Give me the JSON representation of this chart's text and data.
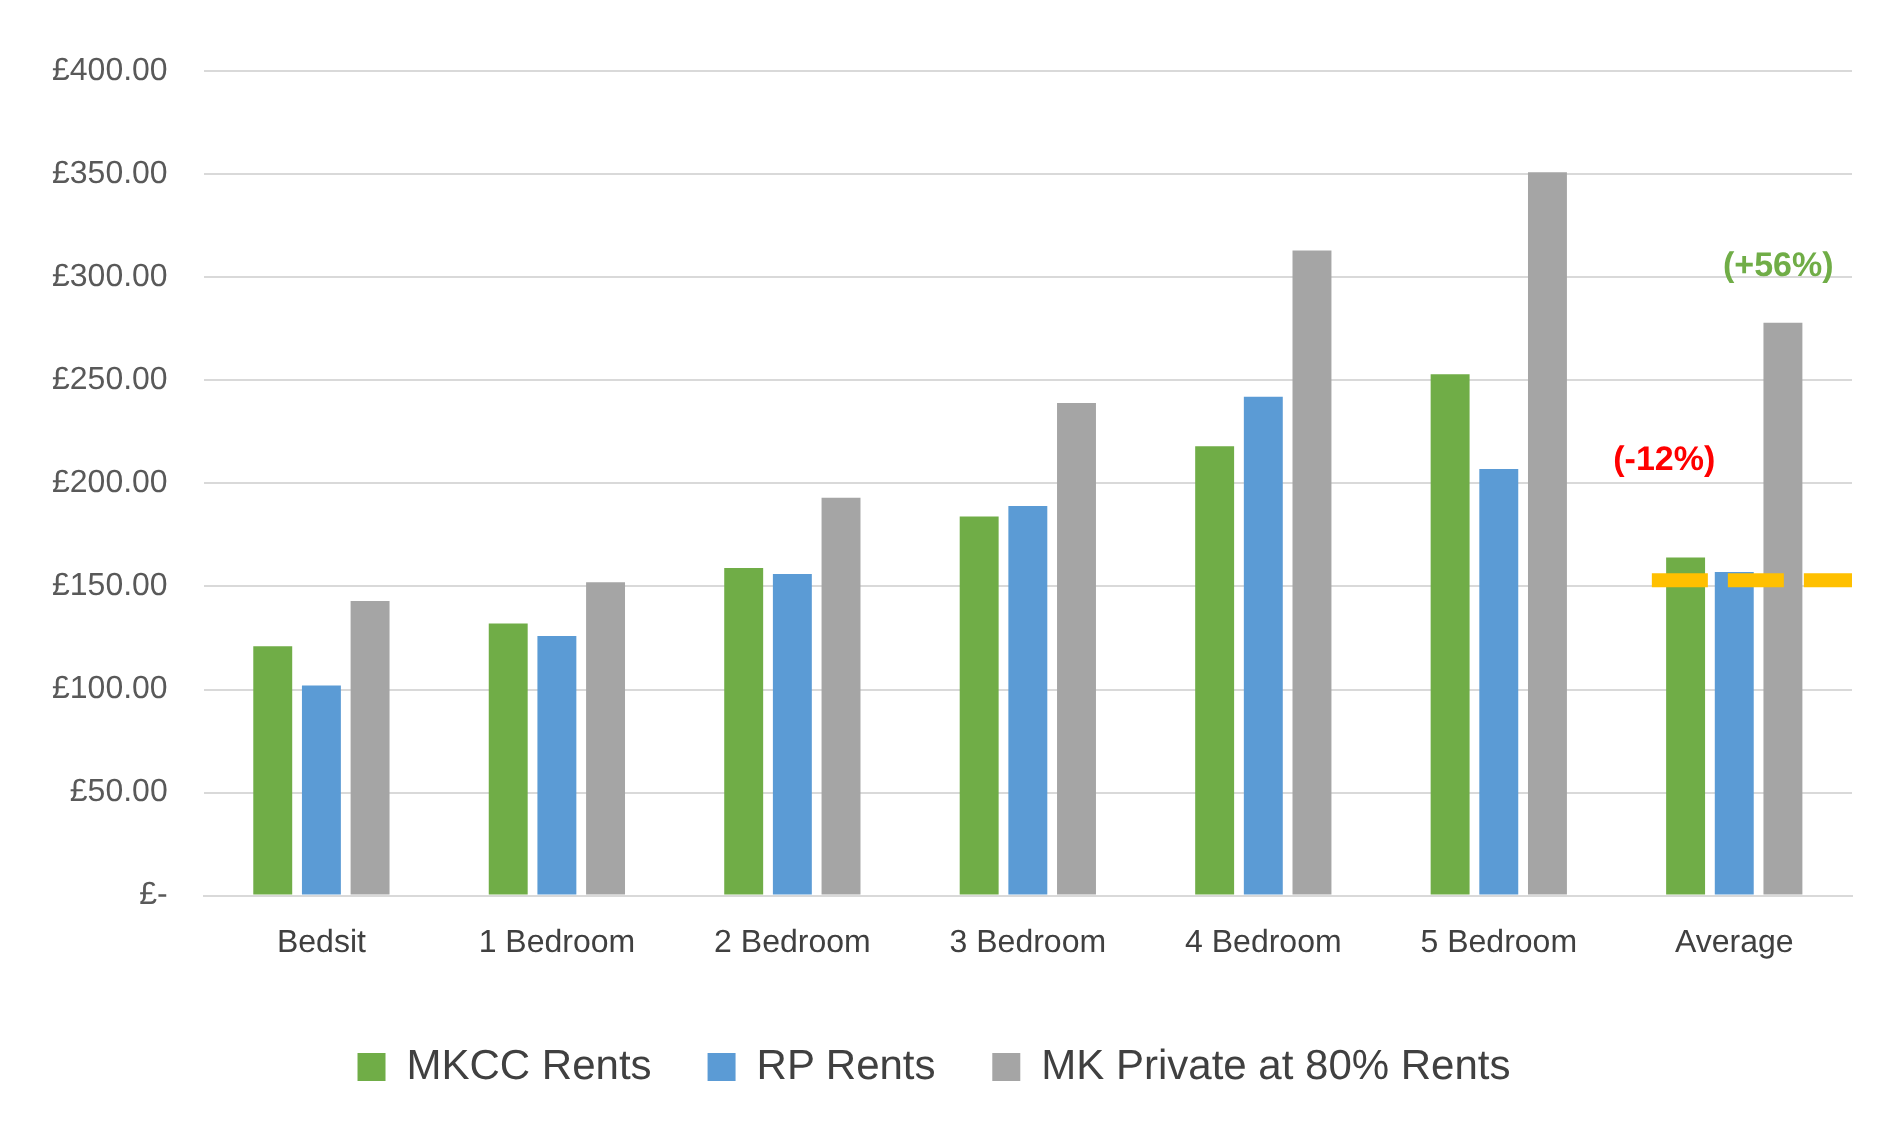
{
  "chart_data": {
    "type": "bar",
    "categories": [
      "Bedsit",
      "1 Bedroom",
      "2 Bedroom",
      "3 Bedroom",
      "4 Bedroom",
      "5 Bedroom",
      "Average"
    ],
    "series": [
      {
        "name": "MKCC Rents",
        "color": "#70ad47",
        "values": [
          121,
          132,
          159,
          184,
          218,
          253,
          164
        ]
      },
      {
        "name": "RP Rents",
        "color": "#5b9bd5",
        "values": [
          102,
          126,
          156,
          189,
          242,
          207,
          157
        ]
      },
      {
        "name": "MK Private at 80% Rents",
        "color": "#a5a5a5",
        "values": [
          143,
          152,
          193,
          239,
          313,
          351,
          278
        ]
      }
    ],
    "ylim": [
      0,
      400
    ],
    "yticks": [
      {
        "value": 0,
        "label": "£-"
      },
      {
        "value": 50,
        "label": "£50.00"
      },
      {
        "value": 100,
        "label": "£100.00"
      },
      {
        "value": 150,
        "label": "£150.00"
      },
      {
        "value": 200,
        "label": "£200.00"
      },
      {
        "value": 250,
        "label": "£250.00"
      },
      {
        "value": 300,
        "label": "£300.00"
      },
      {
        "value": 350,
        "label": "£350.00"
      },
      {
        "value": 400,
        "label": "£400.00"
      }
    ],
    "grid": "y",
    "legend": "bottom",
    "ref_lines": [
      {
        "axis": "y",
        "value": 153,
        "color": "#ffc000",
        "line_style": "dashed"
      }
    ],
    "annotations": [
      "(-12%)",
      "(+56%)"
    ]
  }
}
